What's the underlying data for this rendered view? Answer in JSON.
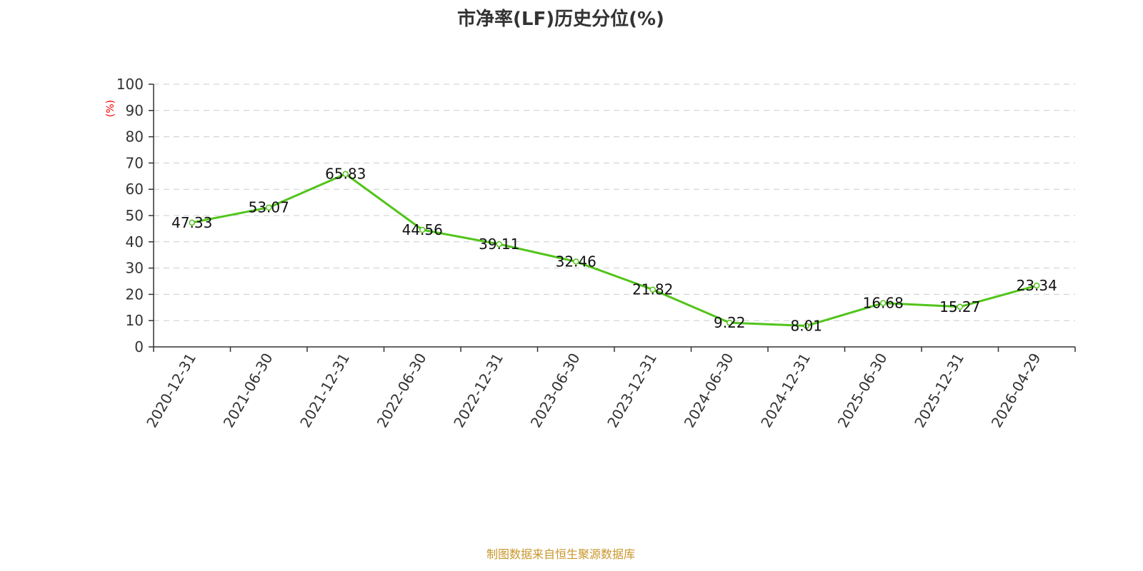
{
  "chart_data": {
    "type": "line",
    "title": "市净率(LF)历史分位(%)",
    "ylabel": "(%)",
    "xlabel": "",
    "ylim": [
      0,
      100
    ],
    "yticks": [
      0,
      10,
      20,
      30,
      40,
      50,
      60,
      70,
      80,
      90,
      100
    ],
    "grid": true,
    "categories": [
      "2020-12-31",
      "2021-06-30",
      "2021-12-31",
      "2022-06-30",
      "2022-12-31",
      "2023-06-30",
      "2023-12-31",
      "2024-06-30",
      "2024-12-31",
      "2025-06-30",
      "2025-12-31",
      "2026-04-29"
    ],
    "series": [
      {
        "name": "市净率(LF)历史分位",
        "values": [
          47.33,
          53.07,
          65.83,
          44.56,
          39.11,
          32.46,
          21.82,
          9.22,
          8.01,
          16.68,
          15.27,
          23.34
        ],
        "color": "#52c41a"
      }
    ],
    "ylabel_color": "#ff0000"
  },
  "footer": "制图数据来自恒生聚源数据库"
}
